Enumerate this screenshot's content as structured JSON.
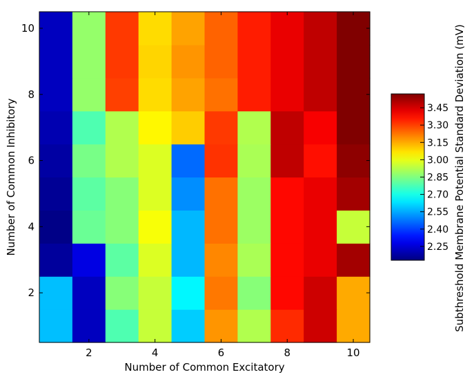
{
  "chart_data": {
    "type": "heatmap",
    "xlabel": "Number of Common Excitatory",
    "ylabel": "Number of Common Inhibitory",
    "x_ticks": [
      "2",
      "4",
      "6",
      "8",
      "10"
    ],
    "y_ticks": [
      "2",
      "4",
      "6",
      "8",
      "10"
    ],
    "x_range": [
      1,
      10
    ],
    "y_range": [
      1,
      10
    ],
    "colormap": "jet",
    "grid": false,
    "colorbar": {
      "label": "Subthreshold Membrane Potential Standard Deviation (mV)",
      "vmin": 2.13,
      "vmax": 3.57,
      "ticks": [
        "2.25",
        "2.40",
        "2.55",
        "2.70",
        "2.85",
        "3.00",
        "3.15",
        "3.30",
        "3.45"
      ],
      "tick_values": [
        2.25,
        2.4,
        2.55,
        2.7,
        2.85,
        3.0,
        3.15,
        3.3,
        3.45
      ],
      "placement": "right"
    },
    "x": [
      1,
      2,
      3,
      4,
      5,
      6,
      7,
      8,
      9,
      10
    ],
    "y": [
      1,
      2,
      3,
      4,
      5,
      6,
      7,
      8,
      9,
      10
    ],
    "values": [
      [
        2.58,
        2.22,
        2.78,
        2.95,
        2.6,
        3.18,
        2.92,
        3.33,
        3.46,
        3.15
      ],
      [
        2.58,
        2.22,
        2.86,
        2.95,
        2.66,
        3.22,
        2.86,
        3.38,
        3.46,
        3.15
      ],
      [
        2.17,
        2.27,
        2.8,
        2.98,
        2.57,
        3.2,
        2.91,
        3.38,
        3.42,
        3.52
      ],
      [
        2.14,
        2.82,
        2.86,
        3.02,
        2.57,
        3.23,
        2.89,
        3.38,
        3.42,
        2.95
      ],
      [
        2.16,
        2.8,
        2.86,
        2.98,
        2.51,
        3.23,
        2.89,
        3.38,
        3.42,
        3.52
      ],
      [
        2.18,
        2.84,
        2.92,
        2.98,
        2.46,
        3.32,
        2.91,
        3.48,
        3.37,
        3.55
      ],
      [
        2.2,
        2.78,
        2.92,
        3.04,
        3.1,
        3.31,
        2.92,
        3.48,
        3.4,
        3.57
      ],
      [
        2.22,
        2.88,
        3.3,
        3.08,
        3.16,
        3.23,
        3.35,
        3.42,
        3.48,
        3.57
      ],
      [
        2.22,
        2.88,
        3.31,
        3.09,
        3.18,
        3.25,
        3.35,
        3.42,
        3.48,
        3.57
      ],
      [
        2.22,
        2.88,
        3.31,
        3.08,
        3.16,
        3.25,
        3.35,
        3.42,
        3.48,
        3.57
      ]
    ]
  }
}
